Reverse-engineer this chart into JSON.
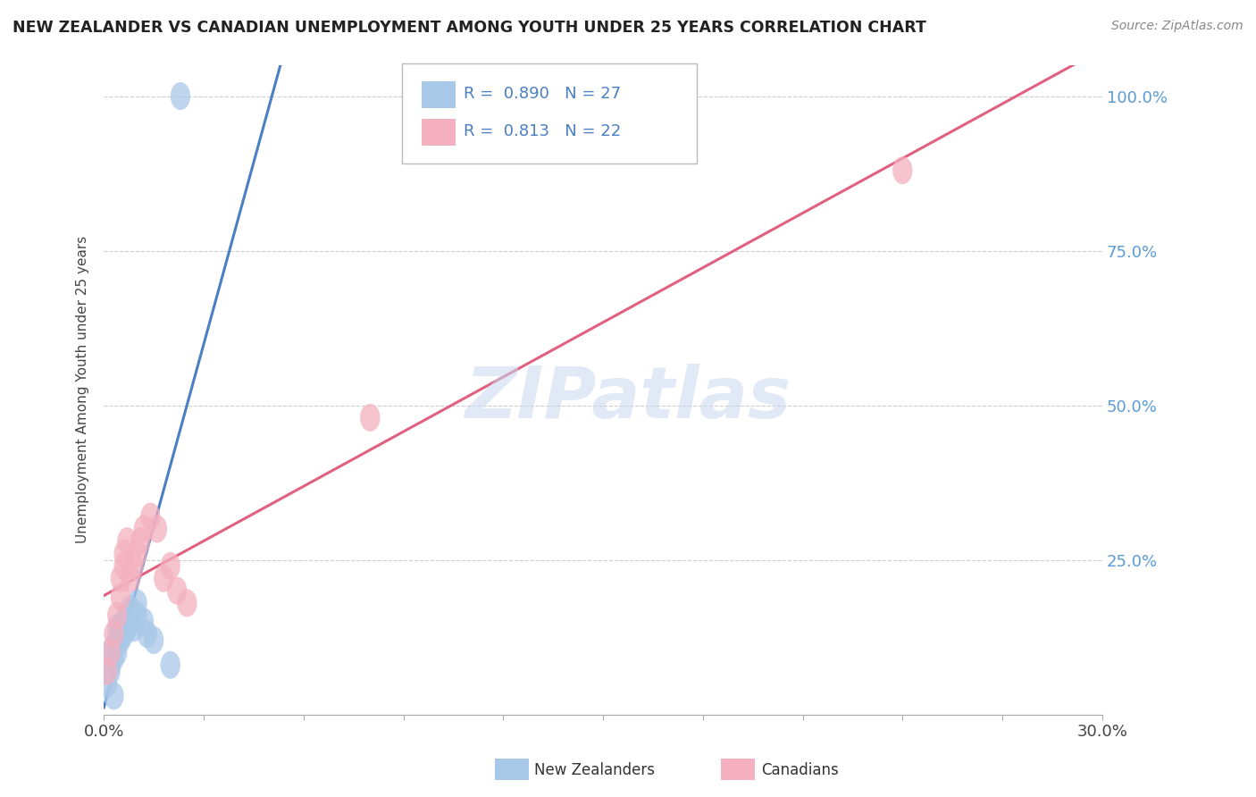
{
  "title": "NEW ZEALANDER VS CANADIAN UNEMPLOYMENT AMONG YOUTH UNDER 25 YEARS CORRELATION CHART",
  "source": "Source: ZipAtlas.com",
  "ylabel": "Unemployment Among Youth under 25 years",
  "xlim": [
    0.0,
    0.3
  ],
  "ylim": [
    0.0,
    1.05
  ],
  "ytick_vals": [
    0.0,
    0.25,
    0.5,
    0.75,
    1.0
  ],
  "ytick_labels": [
    "",
    "25.0%",
    "50.0%",
    "75.0%",
    "100.0%"
  ],
  "watermark_text": "ZIPatlas",
  "nz_color": "#a8c8e8",
  "ca_color": "#f4b0c0",
  "nz_line_color": "#4a7fc1",
  "ca_line_color": "#e06080",
  "legend_r_nz": "0.890",
  "legend_n_nz": "27",
  "legend_r_ca": "0.813",
  "legend_n_ca": "22",
  "nz_x": [
    0.001,
    0.001,
    0.002,
    0.002,
    0.002,
    0.003,
    0.003,
    0.004,
    0.004,
    0.004,
    0.005,
    0.005,
    0.006,
    0.006,
    0.007,
    0.007,
    0.008,
    0.008,
    0.009,
    0.01,
    0.01,
    0.012,
    0.013,
    0.015,
    0.02,
    0.003,
    0.023
  ],
  "nz_y": [
    0.05,
    0.07,
    0.07,
    0.08,
    0.1,
    0.09,
    0.11,
    0.1,
    0.12,
    0.14,
    0.12,
    0.14,
    0.13,
    0.15,
    0.14,
    0.16,
    0.15,
    0.17,
    0.14,
    0.16,
    0.18,
    0.15,
    0.13,
    0.12,
    0.08,
    0.03,
    1.0
  ],
  "ca_x": [
    0.001,
    0.002,
    0.003,
    0.004,
    0.005,
    0.005,
    0.006,
    0.006,
    0.007,
    0.008,
    0.009,
    0.01,
    0.011,
    0.012,
    0.014,
    0.016,
    0.018,
    0.02,
    0.022,
    0.025,
    0.08,
    0.24
  ],
  "ca_y": [
    0.07,
    0.1,
    0.13,
    0.16,
    0.19,
    0.22,
    0.24,
    0.26,
    0.28,
    0.22,
    0.24,
    0.26,
    0.28,
    0.3,
    0.32,
    0.3,
    0.22,
    0.24,
    0.2,
    0.18,
    0.48,
    0.88
  ]
}
